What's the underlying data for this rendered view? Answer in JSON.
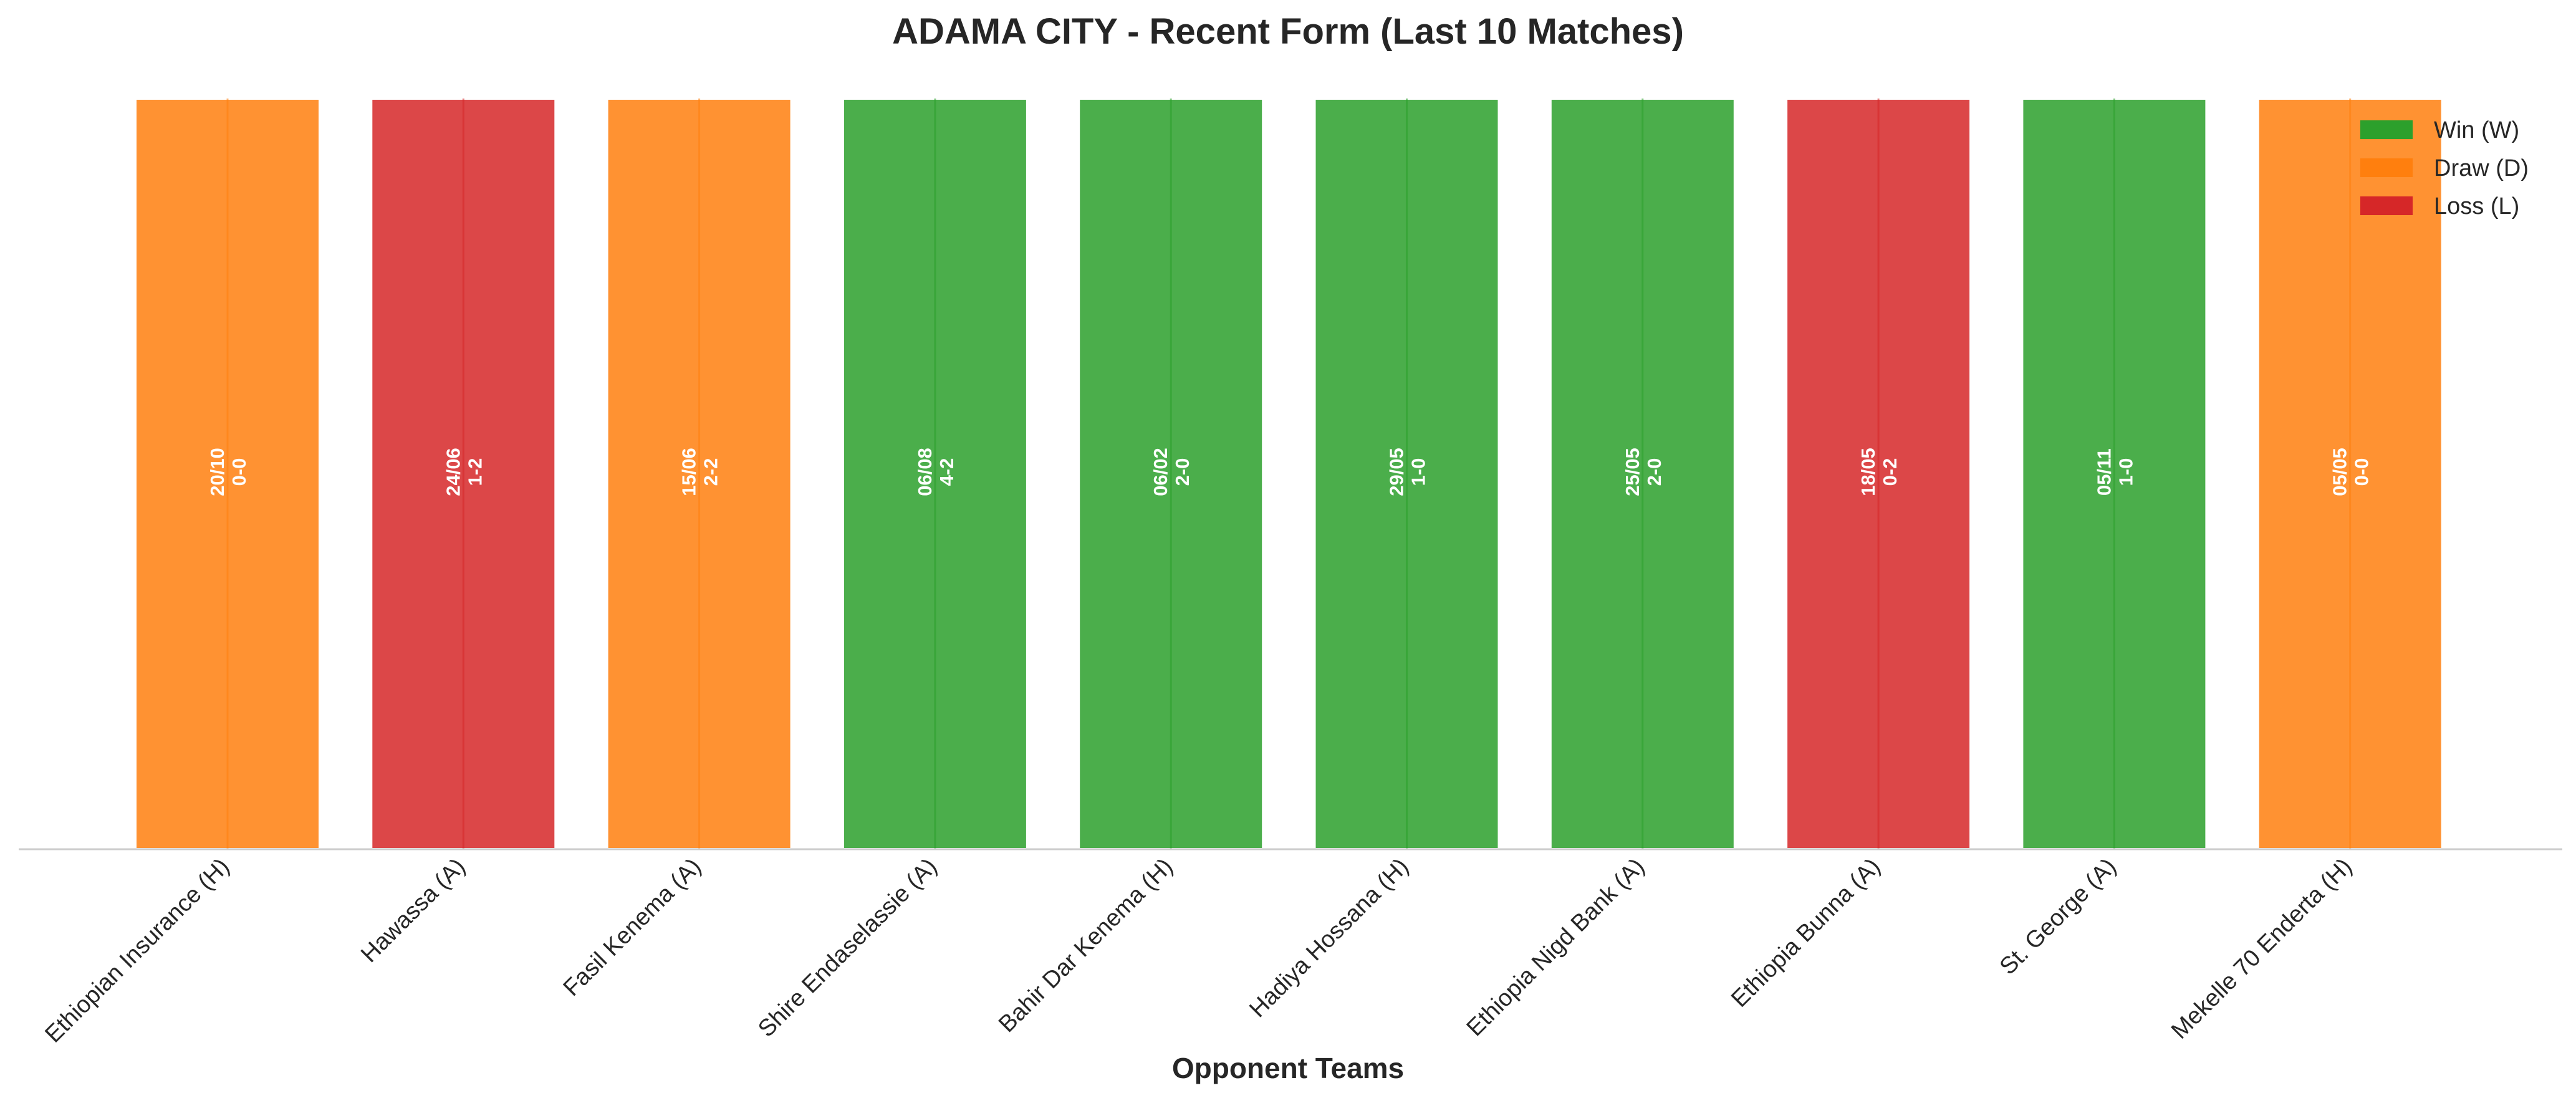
{
  "chart_data": {
    "type": "bar",
    "title": "ADAMA CITY - Recent Form (Last 10 Matches)",
    "xlabel": "Opponent Teams",
    "ylabel": "",
    "ylim": [
      0,
      1
    ],
    "grid": false,
    "legend_position": "top-right",
    "categories": [
      "Ethiopian Insurance (H)",
      "Hawassa (A)",
      "Fasil Kenema (A)",
      "Shire Endaselassie (A)",
      "Bahir Dar Kenema (H)",
      "Hadiya Hossana (H)",
      "Ethiopia Nigd Bank (A)",
      "Ethiopia Bunna (A)",
      "St. George (A)",
      "Mekelle 70 Enderta (H)"
    ],
    "values": [
      1,
      1,
      1,
      1,
      1,
      1,
      1,
      1,
      1,
      1
    ],
    "results": [
      "D",
      "L",
      "D",
      "W",
      "W",
      "W",
      "W",
      "L",
      "W",
      "D"
    ],
    "dates": [
      "20/10",
      "24/06",
      "15/06",
      "06/08",
      "06/02",
      "29/05",
      "25/05",
      "18/05",
      "05/11",
      "05/05"
    ],
    "scores": [
      "0-0",
      "1-2",
      "2-2",
      "4-2",
      "2-0",
      "1-0",
      "2-0",
      "0-2",
      "1-0",
      "0-0"
    ],
    "legend": [
      {
        "key": "W",
        "label": "Win (W)"
      },
      {
        "key": "D",
        "label": "Draw (D)"
      },
      {
        "key": "L",
        "label": "Loss (L)"
      }
    ],
    "colors": {
      "W": "#2ca02c",
      "D": "#ff7f0e",
      "L": "#d62728"
    }
  }
}
